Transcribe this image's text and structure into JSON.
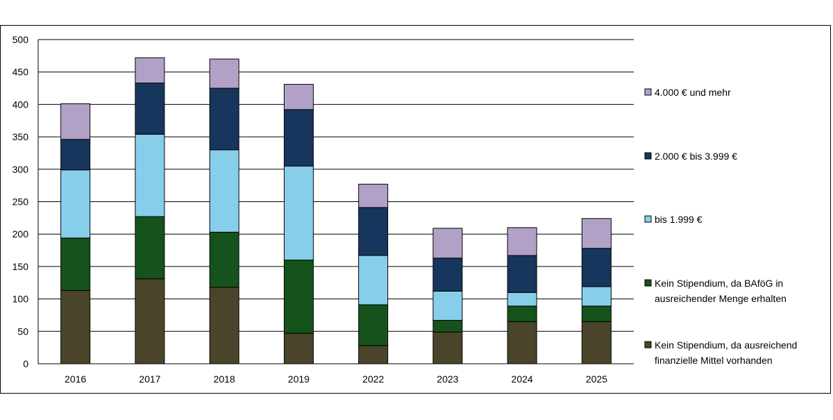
{
  "chart_data": {
    "type": "bar",
    "stacked": true,
    "title": "",
    "xlabel": "",
    "ylabel": "",
    "categories": [
      "2016",
      "2017",
      "2018",
      "2019",
      "2022",
      "2023",
      "2024",
      "2025"
    ],
    "ylim": [
      0,
      500
    ],
    "yticks": [
      "0",
      "50",
      "100",
      "150",
      "200",
      "250",
      "300",
      "350",
      "400",
      "450",
      "500"
    ],
    "grid": "horizontal",
    "legend_position": "right",
    "series": [
      {
        "name": "Kein Stipendium, da ausreichend finanzielle Mittel vorhanden",
        "legend_lines": [
          "Kein Stipendium, da ausreichend",
          "finanzielle Mittel vorhanden"
        ],
        "color": "#4a442a",
        "values": [
          113,
          131,
          118,
          47,
          28,
          49,
          65,
          65
        ]
      },
      {
        "name": "Kein Stipendium, da BAföG in ausreichender Menge erhalten",
        "legend_lines": [
          "Kein Stipendium, da BAföG in",
          "ausreichender Menge erhalten"
        ],
        "color": "#15521c",
        "values": [
          81,
          96,
          85,
          113,
          63,
          18,
          24,
          24
        ]
      },
      {
        "name": "bis 1.999 €",
        "legend_lines": [
          "bis 1.999 €"
        ],
        "color": "#87ceeb",
        "values": [
          105,
          127,
          127,
          145,
          76,
          45,
          21,
          30
        ]
      },
      {
        "name": "2.000 € bis 3.999 €",
        "legend_lines": [
          "2.000 € bis 3.999 €"
        ],
        "color": "#17365d",
        "values": [
          47,
          79,
          95,
          87,
          74,
          51,
          57,
          59
        ]
      },
      {
        "name": "4.000 € und mehr",
        "legend_lines": [
          "4.000 € und mehr"
        ],
        "color": "#b2a1c7",
        "values": [
          55,
          39,
          45,
          39,
          36,
          46,
          43,
          46
        ]
      }
    ]
  }
}
